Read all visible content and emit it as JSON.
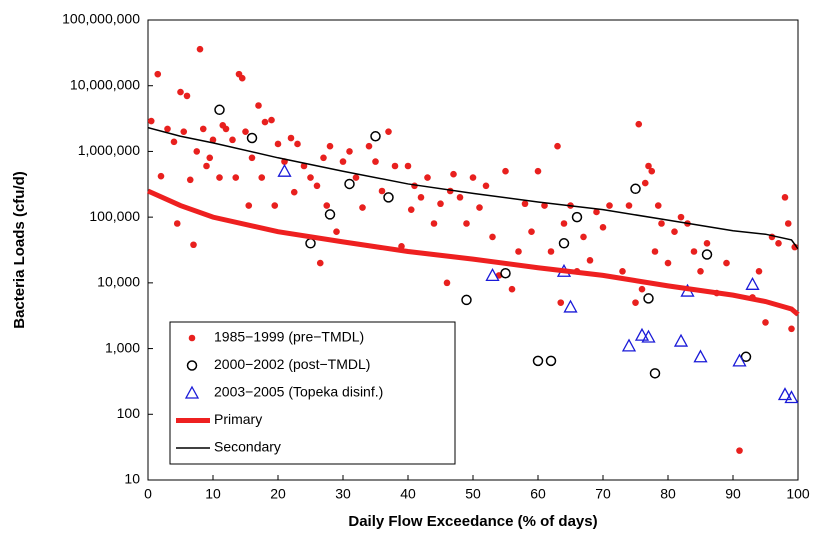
{
  "chart_data": {
    "type": "scatter",
    "x_label": "Daily Flow Exceedance (% of days)",
    "y_label": "Bacteria Loads (cfu/d)",
    "xlim": [
      0,
      100
    ],
    "xticks": [
      0,
      10,
      20,
      30,
      40,
      50,
      60,
      70,
      80,
      90,
      100
    ],
    "ylim": [
      10,
      100000000
    ],
    "y_scale": "log",
    "yticks": [
      {
        "value": 10,
        "label": "10"
      },
      {
        "value": 100,
        "label": "100"
      },
      {
        "value": 1000,
        "label": "1,000"
      },
      {
        "value": 10000,
        "label": "10,000"
      },
      {
        "value": 100000,
        "label": "100,000"
      },
      {
        "value": 1000000,
        "label": "1,000,000"
      },
      {
        "value": 10000000,
        "label": "10,000,000"
      },
      {
        "value": 100000000,
        "label": "100,000,000"
      }
    ],
    "legend": "lower left",
    "series": [
      {
        "name": "1985−1999 (pre−TMDL)",
        "marker": "dot",
        "color": "#e8201e",
        "x": [
          0.5,
          1.5,
          2,
          3,
          4,
          4.5,
          5,
          5.5,
          6,
          6.5,
          7,
          7.5,
          8,
          8.5,
          9,
          9.5,
          10,
          11,
          11.5,
          12,
          13,
          13.5,
          14,
          14.5,
          15,
          15.5,
          16,
          17,
          17.5,
          18,
          19,
          19.5,
          20,
          21,
          22,
          22.5,
          23,
          24,
          25,
          26,
          26.5,
          27,
          27.5,
          28,
          29,
          30,
          31,
          32,
          33,
          34,
          35,
          36,
          37,
          38,
          39,
          40,
          40.5,
          41,
          42,
          43,
          44,
          45,
          46,
          46.5,
          47,
          48,
          49,
          50,
          51,
          52,
          53,
          54,
          55,
          56,
          57,
          58,
          59,
          60,
          61,
          62,
          63,
          63.5,
          64,
          65,
          66,
          67,
          68,
          69,
          70,
          71,
          73,
          74,
          75,
          75.5,
          76,
          76.5,
          77,
          77.5,
          78,
          78.5,
          79,
          80,
          81,
          82,
          83,
          84,
          85,
          86,
          87.5,
          89,
          91,
          93,
          94,
          95,
          96,
          97,
          98,
          98.5,
          99,
          99.5
        ],
        "values": [
          2900000,
          15000000,
          420000,
          2200000,
          1400000,
          80000,
          8000000,
          2000000,
          7000000,
          370000,
          38000,
          1000000,
          36000000,
          2200000,
          600000,
          800000,
          1500000,
          400000,
          2500000,
          2200000,
          1500000,
          400000,
          15000000,
          13000000,
          2000000,
          150000,
          800000,
          5000000,
          400000,
          2800000,
          3000000,
          150000,
          1300000,
          700000,
          1600000,
          240000,
          1300000,
          600000,
          400000,
          300000,
          20000,
          800000,
          150000,
          1200000,
          60000,
          700000,
          1000000,
          400000,
          140000,
          1200000,
          700000,
          250000,
          2000000,
          600000,
          36000,
          600000,
          130000,
          300000,
          200000,
          400000,
          80000,
          160000,
          10000,
          250000,
          450000,
          200000,
          80000,
          400000,
          140000,
          300000,
          50000,
          13000,
          500000,
          8000,
          30000,
          160000,
          60000,
          500000,
          150000,
          30000,
          1200000,
          5000,
          80000,
          150000,
          15000,
          50000,
          22000,
          120000,
          70000,
          150000,
          15000,
          150000,
          5000,
          2600000,
          8000,
          330000,
          600000,
          500000,
          30000,
          150000,
          80000,
          20000,
          60000,
          100000,
          80000,
          30000,
          15000,
          40000,
          7000,
          20000,
          28,
          6000,
          15000,
          2500,
          50000,
          40000,
          200000,
          80000,
          2000,
          35000
        ]
      },
      {
        "name": "2000−2002 (post−TMDL)",
        "marker": "circle",
        "color": "#000000",
        "x": [
          11,
          16,
          25,
          28,
          31,
          35,
          37,
          49,
          55,
          60,
          62,
          64,
          66,
          75,
          77,
          78,
          86,
          92
        ],
        "values": [
          4300000,
          1600000,
          40000,
          110000,
          320000,
          1700000,
          200000,
          5500,
          14000,
          650,
          650,
          40000,
          100000,
          270000,
          5800,
          420,
          27000,
          750
        ]
      },
      {
        "name": "2003−2005 (Topeka disinf.)",
        "marker": "triangle",
        "color": "#1a1ad8",
        "x": [
          21,
          53,
          64,
          65,
          74,
          76,
          77,
          82,
          83,
          85,
          91,
          93,
          98,
          99
        ],
        "values": [
          500000,
          13000,
          15000,
          4300,
          1100,
          1600,
          1500,
          1300,
          7500,
          750,
          650,
          9500,
          200,
          180
        ]
      },
      {
        "name": "Primary",
        "marker": "line",
        "width": 5,
        "color": "#ee2020",
        "x": [
          0,
          5,
          10,
          20,
          30,
          40,
          50,
          60,
          70,
          80,
          90,
          95,
          99,
          100
        ],
        "values": [
          250000,
          150000,
          100000,
          60000,
          42000,
          30000,
          23000,
          17000,
          13000,
          9000,
          6500,
          5200,
          4000,
          3300
        ]
      },
      {
        "name": "Secondary",
        "marker": "line",
        "width": 1.5,
        "color": "#000000",
        "x": [
          0,
          5,
          10,
          20,
          30,
          40,
          50,
          60,
          70,
          80,
          90,
          95,
          99,
          100
        ],
        "values": [
          2300000,
          1700000,
          1350000,
          800000,
          500000,
          320000,
          230000,
          170000,
          130000,
          90000,
          62000,
          55000,
          45000,
          33000
        ]
      }
    ]
  }
}
